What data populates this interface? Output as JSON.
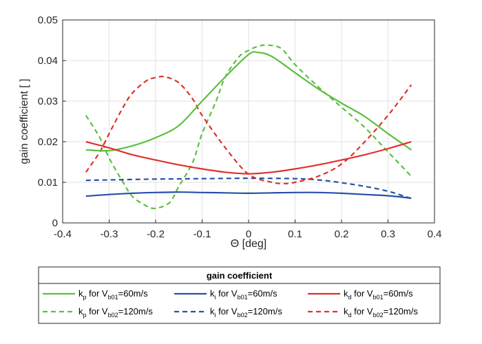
{
  "chart_data": {
    "type": "line",
    "xlabel": "Θ [deg]",
    "ylabel": "gain coefficient [ ]",
    "xlim": [
      -0.4,
      0.4
    ],
    "ylim": [
      0,
      0.05
    ],
    "xticks": [
      -0.4,
      -0.3,
      -0.2,
      -0.1,
      0,
      0.1,
      0.2,
      0.3,
      0.4
    ],
    "yticks": [
      0,
      0.01,
      0.02,
      0.03,
      0.04,
      0.05
    ],
    "xtick_labels": [
      "-0.4",
      "-0.3",
      "-0.2",
      "-0.1",
      "0",
      "0.1",
      "0.2",
      "0.3",
      "0.4"
    ],
    "ytick_labels": [
      "0",
      "0.01",
      "0.02",
      "0.03",
      "0.04",
      "0.05"
    ],
    "grid": true,
    "legend_title": "gain coefficient",
    "legend_position": "bottom-outside",
    "series": [
      {
        "name": "kp for Vb01=60m/s",
        "legend": {
          "k": "k",
          "ksub": "p",
          "mid": " for V",
          "vsub": "b01",
          "tail": "=60m/s"
        },
        "color": "#5cbf3f",
        "dash": "solid",
        "x": [
          -0.35,
          -0.3,
          -0.25,
          -0.2,
          -0.15,
          -0.1,
          -0.05,
          0,
          0.02,
          0.05,
          0.1,
          0.15,
          0.2,
          0.25,
          0.3,
          0.35
        ],
        "y": [
          0.018,
          0.0178,
          0.019,
          0.021,
          0.024,
          0.03,
          0.036,
          0.0415,
          0.042,
          0.041,
          0.037,
          0.033,
          0.0295,
          0.0262,
          0.022,
          0.018
        ]
      },
      {
        "name": "ki for Vb01=60m/s",
        "legend": {
          "k": "k",
          "ksub": "i",
          "mid": " for V",
          "vsub": "b01",
          "tail": "=60m/s"
        },
        "color": "#2450a8",
        "dash": "solid",
        "x": [
          -0.35,
          -0.3,
          -0.25,
          -0.2,
          -0.15,
          -0.1,
          -0.05,
          0,
          0.05,
          0.1,
          0.15,
          0.2,
          0.25,
          0.3,
          0.35
        ],
        "y": [
          0.0066,
          0.007,
          0.0073,
          0.0075,
          0.0076,
          0.0075,
          0.0074,
          0.0073,
          0.0074,
          0.0075,
          0.0075,
          0.0073,
          0.007,
          0.0067,
          0.0061
        ]
      },
      {
        "name": "kd for Vb01=60m/s",
        "legend": {
          "k": "k",
          "ksub": "d",
          "mid": " for V",
          "vsub": "b01",
          "tail": "=60m/s"
        },
        "color": "#e0302b",
        "dash": "solid",
        "x": [
          -0.35,
          -0.3,
          -0.25,
          -0.2,
          -0.15,
          -0.1,
          -0.05,
          0,
          0.05,
          0.1,
          0.15,
          0.2,
          0.25,
          0.3,
          0.35
        ],
        "y": [
          0.02,
          0.0185,
          0.0168,
          0.0155,
          0.0143,
          0.0133,
          0.0125,
          0.0121,
          0.0125,
          0.0133,
          0.0143,
          0.0155,
          0.0168,
          0.0183,
          0.02
        ]
      },
      {
        "name": "kp for Vb02=120m/s",
        "legend": {
          "k": "k",
          "ksub": "p",
          "mid": " for V",
          "vsub": "b02",
          "tail": "=120m/s"
        },
        "color": "#5cbf3f",
        "dash": "dashed",
        "x": [
          -0.35,
          -0.32,
          -0.3,
          -0.27,
          -0.25,
          -0.22,
          -0.2,
          -0.17,
          -0.15,
          -0.12,
          -0.1,
          -0.07,
          -0.05,
          -0.02,
          0,
          0.02,
          0.04,
          0.07,
          0.1,
          0.15,
          0.2,
          0.25,
          0.3,
          0.35
        ],
        "y": [
          0.0265,
          0.021,
          0.016,
          0.01,
          0.0065,
          0.0042,
          0.0036,
          0.005,
          0.009,
          0.015,
          0.022,
          0.03,
          0.036,
          0.041,
          0.0425,
          0.0435,
          0.0438,
          0.043,
          0.039,
          0.0335,
          0.0285,
          0.0235,
          0.0175,
          0.0115
        ]
      },
      {
        "name": "ki for Vb02=120m/s",
        "legend": {
          "k": "k",
          "ksub": "i",
          "mid": " for V",
          "vsub": "b02",
          "tail": "=120m/s"
        },
        "color": "#2450a8",
        "dash": "dashed",
        "x": [
          -0.35,
          -0.3,
          -0.2,
          -0.1,
          0,
          0.1,
          0.15,
          0.2,
          0.25,
          0.3,
          0.35
        ],
        "y": [
          0.0105,
          0.0106,
          0.0108,
          0.0109,
          0.011,
          0.0109,
          0.0106,
          0.0099,
          0.009,
          0.0078,
          0.006
        ]
      },
      {
        "name": "kd for Vb02=120m/s",
        "legend": {
          "k": "k",
          "ksub": "d",
          "mid": " for V",
          "vsub": "b02",
          "tail": "=120m/s"
        },
        "color": "#e0302b",
        "dash": "dashed",
        "x": [
          -0.35,
          -0.32,
          -0.3,
          -0.27,
          -0.25,
          -0.22,
          -0.2,
          -0.18,
          -0.15,
          -0.12,
          -0.1,
          -0.05,
          0,
          0.05,
          0.08,
          0.1,
          0.15,
          0.2,
          0.25,
          0.3,
          0.35
        ],
        "y": [
          0.0125,
          0.0175,
          0.022,
          0.0285,
          0.032,
          0.035,
          0.0358,
          0.036,
          0.0345,
          0.0305,
          0.0265,
          0.0185,
          0.012,
          0.01,
          0.0097,
          0.01,
          0.0115,
          0.0145,
          0.02,
          0.0265,
          0.034
        ]
      }
    ]
  }
}
